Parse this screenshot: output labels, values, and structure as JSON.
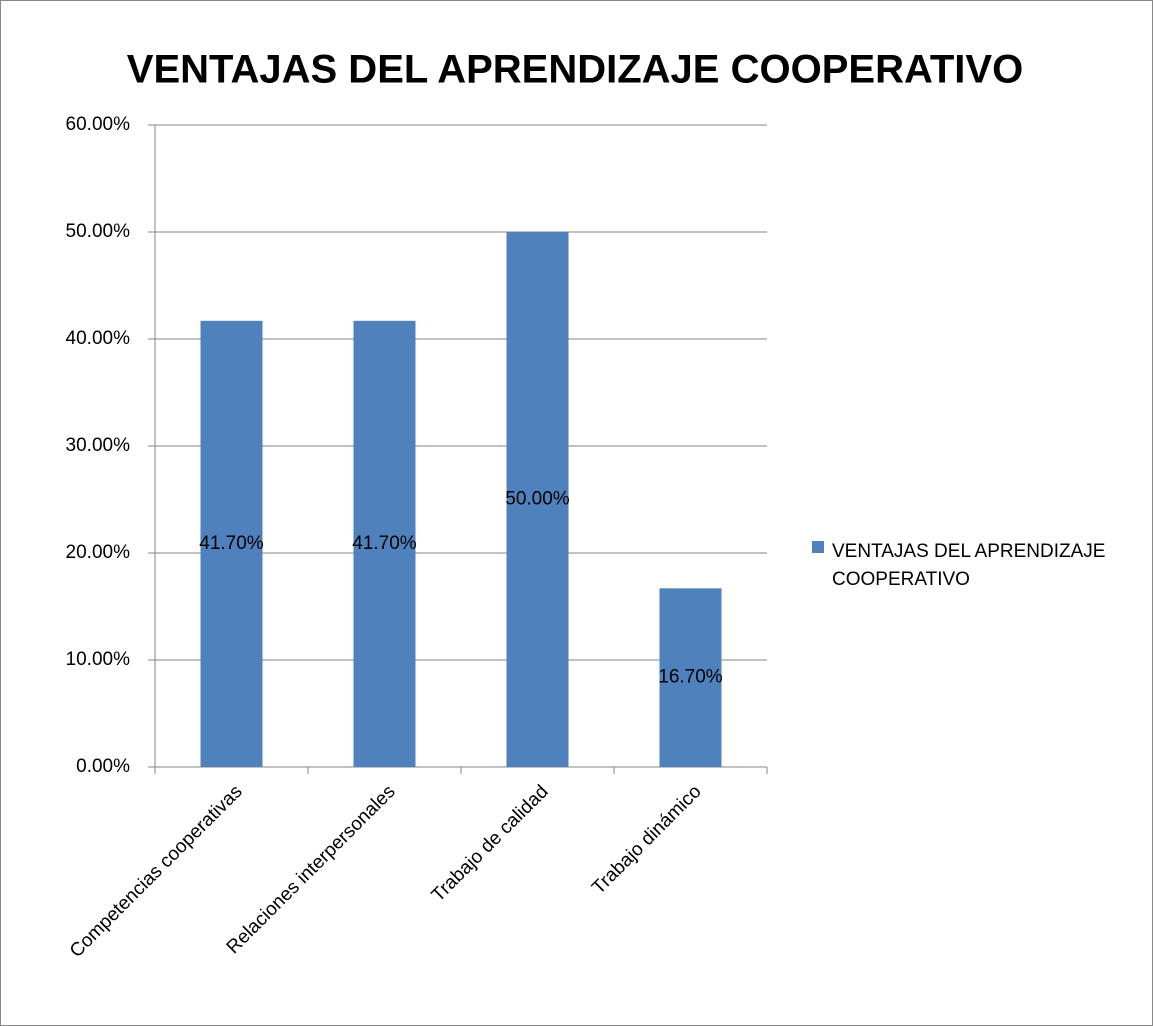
{
  "chart_data": {
    "type": "bar",
    "title": "VENTAJAS DEL APRENDIZAJE COOPERATIVO",
    "categories": [
      "Competencias cooperativas",
      "Relaciones interpersonales",
      "Trabajo de calidad",
      "Trabajo dinámico"
    ],
    "series": [
      {
        "name": "VENTAJAS DEL APRENDIZAJE COOPERATIVO",
        "color": "#4f81bd",
        "values": [
          41.7,
          41.7,
          50,
          16.7
        ],
        "value_labels": [
          "41.70%",
          "41.70%",
          "50.00%",
          "16.70%"
        ]
      }
    ],
    "ylim": [
      0,
      60
    ],
    "yticks": [
      {
        "value": 0,
        "label": "0.00%"
      },
      {
        "value": 10,
        "label": "10.00%"
      },
      {
        "value": 20,
        "label": "20.00%"
      },
      {
        "value": 30,
        "label": "30.00%"
      },
      {
        "value": 40,
        "label": "40.00%"
      },
      {
        "value": 50,
        "label": "50.00%"
      },
      {
        "value": 60,
        "label": "60.00%"
      }
    ],
    "grid": true,
    "legend": "right"
  }
}
